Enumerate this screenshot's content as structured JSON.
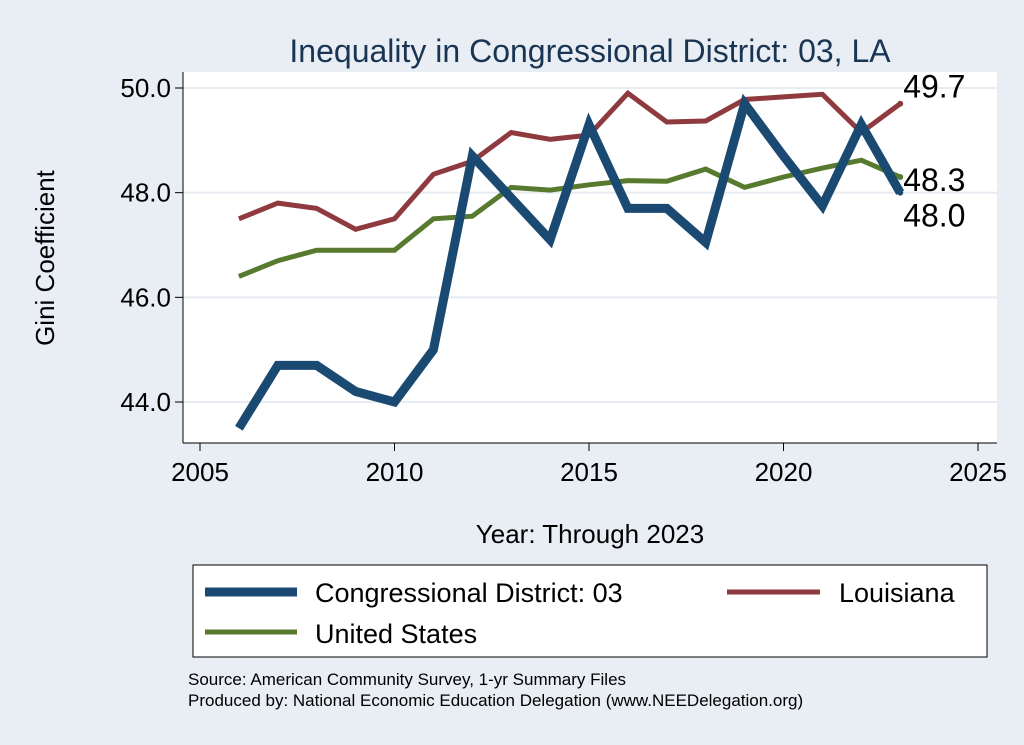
{
  "chart_data": {
    "type": "line",
    "title": "Inequality in Congressional District:  03, LA",
    "xlabel": "Year: Through 2023",
    "ylabel": "Gini Coefficient",
    "xlim": [
      2005,
      2025
    ],
    "ylim": [
      43.2,
      50.3
    ],
    "x_ticks": [
      2005,
      2010,
      2015,
      2020,
      2025
    ],
    "y_ticks": [
      44.0,
      46.0,
      48.0,
      50.0
    ],
    "x_tick_labels": [
      "2005",
      "2010",
      "2015",
      "2020",
      "2025"
    ],
    "y_tick_labels": [
      "44.0",
      "46.0",
      "48.0",
      "50.0"
    ],
    "grid": true,
    "legend_position": "bottom",
    "series": [
      {
        "name": "Congressional District:  03",
        "color": "#1a4a72",
        "x": [
          2006,
          2007,
          2008,
          2009,
          2010,
          2011,
          2012,
          2013,
          2014,
          2015,
          2016,
          2017,
          2018,
          2019,
          2020,
          2021,
          2022,
          2023
        ],
        "values": [
          43.5,
          44.7,
          44.7,
          44.2,
          44.0,
          45.0,
          48.7,
          47.9,
          47.1,
          49.3,
          47.7,
          47.7,
          47.05,
          49.7,
          48.7,
          47.75,
          49.3,
          48.0
        ],
        "end_label": "48.0"
      },
      {
        "name": "Louisiana",
        "color": "#8f3a3e",
        "x": [
          2006,
          2007,
          2008,
          2009,
          2010,
          2011,
          2012,
          2013,
          2014,
          2015,
          2016,
          2017,
          2018,
          2019,
          2020,
          2021,
          2022,
          2023
        ],
        "values": [
          47.5,
          47.8,
          47.7,
          47.3,
          47.5,
          48.35,
          48.6,
          49.15,
          49.02,
          49.1,
          49.9,
          49.35,
          49.37,
          49.78,
          49.83,
          49.88,
          49.15,
          49.7
        ],
        "end_label": "49.7"
      },
      {
        "name": "United States",
        "color": "#577a2e",
        "x": [
          2006,
          2007,
          2008,
          2009,
          2010,
          2011,
          2012,
          2013,
          2014,
          2015,
          2016,
          2017,
          2018,
          2019,
          2020,
          2021,
          2022,
          2023
        ],
        "values": [
          46.4,
          46.7,
          46.9,
          46.9,
          46.9,
          47.5,
          47.55,
          48.1,
          48.05,
          48.15,
          48.23,
          48.22,
          48.45,
          48.1,
          48.3,
          48.47,
          48.62,
          48.3
        ],
        "end_label": "48.3"
      }
    ]
  },
  "source": {
    "line1": "Source: American Community Survey, 1-yr Summary Files",
    "line2": "Produced by: National Economic Education Delegation (www.NEEDelegation.org)"
  }
}
